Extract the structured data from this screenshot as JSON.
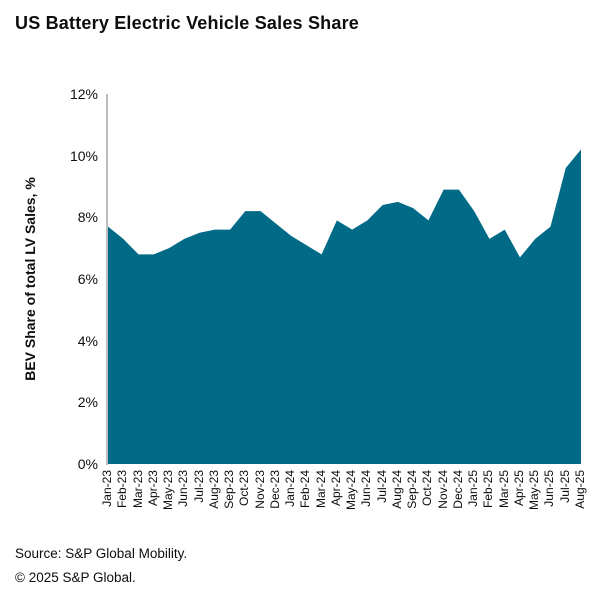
{
  "title": "US Battery Electric Vehicle Sales Share",
  "footer": {
    "source": "Source: S&P Global Mobility.",
    "copyright": "© 2025 S&P Global."
  },
  "chart_data": {
    "type": "area",
    "title": "US Battery Electric Vehicle Sales Share",
    "ylabel": "BEV Share of total LV Sales, %",
    "xlabel": "",
    "ylim": [
      0,
      12
    ],
    "yticks": [
      0,
      2,
      4,
      6,
      8,
      10,
      12
    ],
    "ytick_suffix": "%",
    "grid": false,
    "legend": "none",
    "fill_color": "#006A87",
    "axis_color": "#BDBDBD",
    "categories": [
      "Jan-23",
      "Feb-23",
      "Mar-23",
      "Apr-23",
      "May-23",
      "Jun-23",
      "Jul-23",
      "Aug-23",
      "Sep-23",
      "Oct-23",
      "Nov-23",
      "Dec-23",
      "Jan-24",
      "Feb-24",
      "Mar-24",
      "Apr-24",
      "May-24",
      "Jun-24",
      "Jul-24",
      "Aug-24",
      "Sep-24",
      "Oct-24",
      "Nov-24",
      "Dec-24",
      "Jan-25",
      "Feb-25",
      "Mar-25",
      "Apr-25",
      "May-25",
      "Jun-25",
      "Jul-25",
      "Aug-25"
    ],
    "values": [
      7.7,
      7.3,
      6.8,
      6.8,
      7.0,
      7.3,
      7.5,
      7.6,
      7.6,
      8.2,
      8.2,
      7.8,
      7.4,
      7.1,
      6.8,
      7.9,
      7.6,
      7.9,
      8.4,
      8.5,
      8.3,
      7.9,
      8.9,
      8.9,
      8.2,
      7.3,
      7.6,
      6.7,
      7.3,
      7.7,
      9.6,
      10.2
    ]
  }
}
